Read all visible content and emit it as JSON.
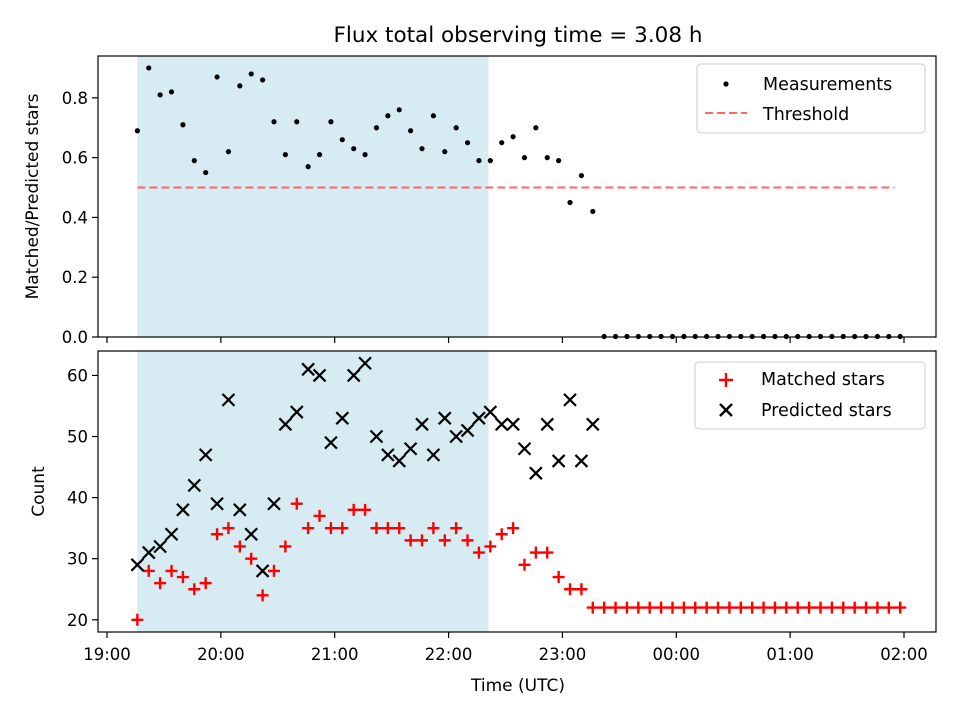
{
  "title": "Flux total observing time = 3.08 h",
  "colors": {
    "shade": "#add8e6",
    "threshold": "#ff6666",
    "matched": "#ff0000",
    "predicted": "#000000",
    "measurement": "#000000"
  },
  "chart_data": [
    {
      "type": "scatter",
      "ylabel": "Matched/Predicted stars",
      "ylim": [
        0,
        0.94
      ],
      "yticks": [
        "0.0",
        "0.2",
        "0.4",
        "0.6",
        "0.8"
      ],
      "shaded_span": [
        "19:16",
        "22:21"
      ],
      "legend": {
        "position": "top-right",
        "entries": [
          "Measurements",
          "Threshold"
        ]
      },
      "threshold": 0.5,
      "threshold_span": [
        "19:16",
        "01:55"
      ],
      "series": [
        {
          "name": "Measurements",
          "x": [
            "19:16",
            "19:22",
            "19:28",
            "19:34",
            "19:40",
            "19:46",
            "19:52",
            "19:58",
            "20:04",
            "20:10",
            "20:16",
            "20:22",
            "20:28",
            "20:34",
            "20:40",
            "20:46",
            "20:52",
            "20:58",
            "21:04",
            "21:10",
            "21:16",
            "21:22",
            "21:28",
            "21:34",
            "21:40",
            "21:46",
            "21:52",
            "21:58",
            "22:04",
            "22:10",
            "22:16",
            "22:22",
            "22:28",
            "22:34",
            "22:40",
            "22:46",
            "22:52",
            "22:58",
            "23:04",
            "23:10",
            "23:16",
            "23:22",
            "23:28",
            "23:34",
            "23:40",
            "23:46",
            "23:52",
            "23:58",
            "00:04",
            "00:10",
            "00:16",
            "00:22",
            "00:28",
            "00:34",
            "00:40",
            "00:46",
            "00:52",
            "00:58",
            "01:04",
            "01:10",
            "01:16",
            "01:22",
            "01:28",
            "01:34",
            "01:40",
            "01:46",
            "01:52",
            "01:58"
          ],
          "y": [
            0.69,
            0.9,
            0.81,
            0.82,
            0.71,
            0.59,
            0.55,
            0.87,
            0.62,
            0.84,
            0.88,
            0.86,
            0.72,
            0.61,
            0.72,
            0.57,
            0.61,
            0.72,
            0.66,
            0.63,
            0.61,
            0.7,
            0.74,
            0.76,
            0.69,
            0.63,
            0.74,
            0.62,
            0.7,
            0.65,
            0.59,
            0.59,
            0.65,
            0.67,
            0.6,
            0.7,
            0.6,
            0.59,
            0.45,
            0.54,
            0.42,
            0,
            0,
            0,
            0,
            0,
            0,
            0,
            0,
            0,
            0,
            0,
            0,
            0,
            0,
            0,
            0,
            0,
            0,
            0,
            0,
            0,
            0,
            0,
            0,
            0,
            0,
            0
          ]
        }
      ]
    },
    {
      "type": "scatter",
      "xlabel": "Time (UTC)",
      "ylabel": "Count",
      "ylim": [
        18,
        64
      ],
      "yticks": [
        "20",
        "30",
        "40",
        "50",
        "60"
      ],
      "xticks": [
        "19:00",
        "20:00",
        "21:00",
        "22:00",
        "23:00",
        "00:00",
        "01:00",
        "02:00"
      ],
      "shaded_span": [
        "19:16",
        "22:21"
      ],
      "legend": {
        "position": "top-right",
        "entries": [
          "Matched stars",
          "Predicted stars"
        ]
      },
      "series": [
        {
          "name": "Matched stars",
          "x": [
            "19:16",
            "19:22",
            "19:28",
            "19:34",
            "19:40",
            "19:46",
            "19:52",
            "19:58",
            "20:04",
            "20:10",
            "20:16",
            "20:22",
            "20:28",
            "20:34",
            "20:40",
            "20:46",
            "20:52",
            "20:58",
            "21:04",
            "21:10",
            "21:16",
            "21:22",
            "21:28",
            "21:34",
            "21:40",
            "21:46",
            "21:52",
            "21:58",
            "22:04",
            "22:10",
            "22:16",
            "22:22",
            "22:28",
            "22:34",
            "22:40",
            "22:46",
            "22:52",
            "22:58",
            "23:04",
            "23:10",
            "23:16",
            "23:22",
            "23:28",
            "23:34",
            "23:40",
            "23:46",
            "23:52",
            "23:58",
            "00:04",
            "00:10",
            "00:16",
            "00:22",
            "00:28",
            "00:34",
            "00:40",
            "00:46",
            "00:52",
            "00:58",
            "01:04",
            "01:10",
            "01:16",
            "01:22",
            "01:28",
            "01:34",
            "01:40",
            "01:46",
            "01:52",
            "01:58"
          ],
          "y": [
            20,
            28,
            26,
            28,
            27,
            25,
            26,
            34,
            35,
            32,
            30,
            24,
            28,
            32,
            39,
            35,
            37,
            35,
            35,
            38,
            38,
            35,
            35,
            35,
            33,
            33,
            35,
            33,
            35,
            33,
            31,
            32,
            34,
            35,
            29,
            31,
            31,
            27,
            25,
            25,
            22,
            22,
            22,
            22,
            22,
            22,
            22,
            22,
            22,
            22,
            22,
            22,
            22,
            22,
            22,
            22,
            22,
            22,
            22,
            22,
            22,
            22,
            22,
            22,
            22,
            22,
            22,
            22
          ]
        },
        {
          "name": "Predicted stars",
          "x": [
            "19:16",
            "19:22",
            "19:28",
            "19:34",
            "19:40",
            "19:46",
            "19:52",
            "19:58",
            "20:04",
            "20:10",
            "20:16",
            "20:22",
            "20:28",
            "20:34",
            "20:40",
            "20:46",
            "20:52",
            "20:58",
            "21:04",
            "21:10",
            "21:16",
            "21:22",
            "21:28",
            "21:34",
            "21:40",
            "21:46",
            "21:52",
            "21:58",
            "22:04",
            "22:10",
            "22:16",
            "22:22",
            "22:28",
            "22:34",
            "22:40",
            "22:46",
            "22:52",
            "22:58",
            "23:04",
            "23:10",
            "23:16"
          ],
          "y": [
            29,
            31,
            32,
            34,
            38,
            42,
            47,
            39,
            56,
            38,
            34,
            28,
            39,
            52,
            54,
            61,
            60,
            49,
            53,
            60,
            62,
            50,
            47,
            46,
            48,
            52,
            47,
            53,
            50,
            51,
            53,
            54,
            52,
            52,
            48,
            44,
            52,
            46,
            56,
            46,
            52
          ]
        }
      ]
    }
  ]
}
